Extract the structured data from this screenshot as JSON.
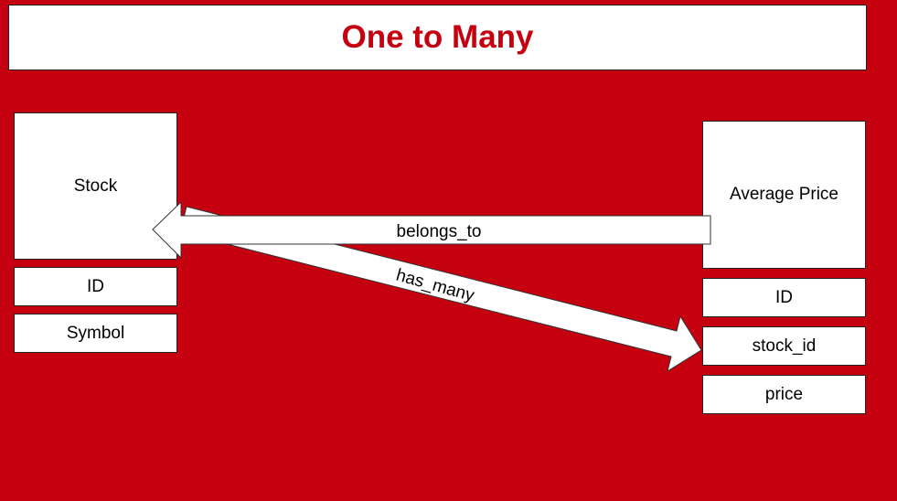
{
  "title": "One to Many",
  "left_entity": {
    "name": "Stock",
    "fields": [
      "ID",
      "Symbol"
    ]
  },
  "right_entity": {
    "name": "Average Price",
    "fields": [
      "ID",
      "stock_id",
      "price"
    ]
  },
  "relations": {
    "belongs_to": "belongs_to",
    "has_many": "has_many"
  },
  "colors": {
    "background": "#c5000f",
    "title_text": "#c5000f",
    "box_fill": "#ffffff"
  }
}
